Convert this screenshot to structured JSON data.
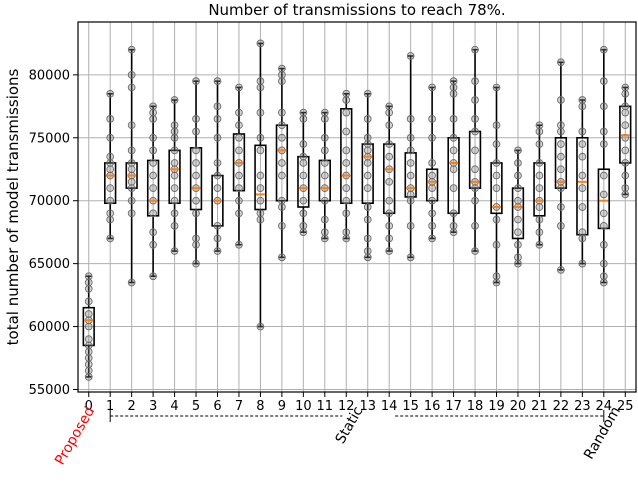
{
  "chart_data": {
    "type": "box",
    "title": "Number of transmissions to reach 78%.",
    "xlabel": "",
    "ylabel": "total number of model transmissions",
    "categories": [
      "0",
      "1",
      "2",
      "3",
      "4",
      "5",
      "6",
      "7",
      "8",
      "9",
      "10",
      "11",
      "12",
      "13",
      "14",
      "15",
      "16",
      "17",
      "18",
      "19",
      "20",
      "21",
      "22",
      "23",
      "24",
      "25"
    ],
    "ylim": [
      54800,
      84200
    ],
    "yticks": [
      55000,
      60000,
      65000,
      70000,
      75000,
      80000
    ],
    "ytick_labels": [
      "55000",
      "60000",
      "65000",
      "70000",
      "75000",
      "80000"
    ],
    "grid": true,
    "group_labels": [
      {
        "text": "Proposed",
        "at": 0,
        "color": "#ff0000"
      },
      {
        "text": "Static",
        "at": 12.5,
        "color": "#000000"
      },
      {
        "text": "Random",
        "at": 24.5,
        "color": "#000000"
      }
    ],
    "static_bracket": [
      1,
      24
    ],
    "median_color": "#ff7f0e",
    "boxes": [
      {
        "min": 56000,
        "q1": 58500,
        "median": 60500,
        "q3": 61500,
        "max": 64000,
        "points": [
          56000,
          56500,
          57000,
          57500,
          58000,
          58500,
          59000,
          60000,
          60500,
          61000,
          62000,
          63000,
          63500,
          64000
        ]
      },
      {
        "min": 67000,
        "q1": 69800,
        "median": 72000,
        "q3": 73000,
        "max": 78500,
        "points": [
          67000,
          68500,
          69000,
          70000,
          71000,
          72000,
          72500,
          73000,
          73500,
          75000,
          76500,
          78500
        ]
      },
      {
        "min": 63500,
        "q1": 71000,
        "median": 72000,
        "q3": 73000,
        "max": 82000,
        "points": [
          63500,
          69000,
          70000,
          71000,
          71500,
          72000,
          72500,
          73000,
          74000,
          76000,
          79000,
          80000,
          82000
        ]
      },
      {
        "min": 64000,
        "q1": 68800,
        "median": 70000,
        "q3": 73200,
        "max": 77500,
        "points": [
          64000,
          66500,
          67500,
          69000,
          70000,
          71000,
          72000,
          73000,
          74000,
          75000,
          76500,
          77000,
          77500
        ]
      },
      {
        "min": 66000,
        "q1": 69800,
        "median": 72500,
        "q3": 74000,
        "max": 78000,
        "points": [
          66000,
          68000,
          69000,
          70000,
          71000,
          72000,
          72500,
          73000,
          74000,
          75000,
          75500,
          76000,
          78000
        ]
      },
      {
        "min": 65000,
        "q1": 69300,
        "median": 71000,
        "q3": 74200,
        "max": 79500,
        "points": [
          65000,
          66500,
          67000,
          69000,
          70000,
          71000,
          72000,
          73000,
          74000,
          75500,
          76500,
          79500
        ]
      },
      {
        "min": 66000,
        "q1": 68000,
        "median": 70000,
        "q3": 72000,
        "max": 79500,
        "points": [
          66000,
          67000,
          68000,
          70000,
          71000,
          72000,
          73000,
          75000,
          76500,
          77500,
          79500
        ]
      },
      {
        "min": 66500,
        "q1": 70800,
        "median": 73000,
        "q3": 75300,
        "max": 79000,
        "points": [
          66500,
          69000,
          70000,
          71000,
          72000,
          73000,
          74000,
          75000,
          76000,
          77000,
          79000
        ]
      },
      {
        "min": 60000,
        "q1": 69300,
        "median": 70500,
        "q3": 74400,
        "max": 82500,
        "points": [
          60000,
          68500,
          69000,
          70000,
          71000,
          72000,
          74000,
          75000,
          77000,
          79000,
          79500,
          82500
        ]
      },
      {
        "min": 65500,
        "q1": 70000,
        "median": 74000,
        "q3": 76000,
        "max": 80500,
        "points": [
          65500,
          68000,
          69500,
          70000,
          72000,
          73000,
          74000,
          75000,
          76000,
          77000,
          79500,
          80000,
          80500
        ]
      },
      {
        "min": 67500,
        "q1": 69500,
        "median": 71000,
        "q3": 73500,
        "max": 77000,
        "points": [
          67500,
          68000,
          69000,
          70000,
          71000,
          72000,
          73000,
          73500,
          74500,
          76500,
          77000
        ]
      },
      {
        "min": 67000,
        "q1": 70000,
        "median": 71000,
        "q3": 73200,
        "max": 77000,
        "points": [
          67000,
          67500,
          68500,
          70000,
          71000,
          72000,
          73000,
          74000,
          75000,
          76500,
          77000
        ]
      },
      {
        "min": 67000,
        "q1": 69800,
        "median": 72000,
        "q3": 77300,
        "max": 78500,
        "points": [
          67000,
          67500,
          69000,
          70000,
          71000,
          72000,
          73000,
          74000,
          75500,
          77000,
          78000,
          78500
        ]
      },
      {
        "min": 65500,
        "q1": 69800,
        "median": 73500,
        "q3": 74500,
        "max": 78500,
        "points": [
          65500,
          66000,
          67000,
          68500,
          69500,
          71000,
          72000,
          73000,
          73500,
          74000,
          74500,
          75000,
          76500,
          78500
        ]
      },
      {
        "min": 66000,
        "q1": 69000,
        "median": 72500,
        "q3": 74500,
        "max": 77500,
        "points": [
          66000,
          67000,
          68000,
          69000,
          70000,
          71500,
          72500,
          73500,
          74500,
          76000,
          77000,
          77500
        ]
      },
      {
        "min": 65500,
        "q1": 70300,
        "median": 71000,
        "q3": 73800,
        "max": 81500,
        "points": [
          65500,
          68000,
          70000,
          70500,
          71000,
          72000,
          73000,
          74000,
          75000,
          76500,
          81500
        ]
      },
      {
        "min": 67000,
        "q1": 70000,
        "median": 71500,
        "q3": 72500,
        "max": 79000,
        "points": [
          67000,
          68000,
          69000,
          70000,
          71000,
          71500,
          72000,
          73000,
          75000,
          76500,
          79000
        ]
      },
      {
        "min": 67500,
        "q1": 69000,
        "median": 73000,
        "q3": 75000,
        "max": 79500,
        "points": [
          67500,
          68000,
          69000,
          71000,
          72500,
          73000,
          74000,
          75000,
          76500,
          78500,
          79000,
          79500
        ]
      },
      {
        "min": 66000,
        "q1": 71000,
        "median": 71500,
        "q3": 75500,
        "max": 82000,
        "points": [
          66000,
          68000,
          70000,
          71000,
          71500,
          72500,
          74000,
          75500,
          76500,
          78000,
          79500,
          82000
        ]
      },
      {
        "min": 63500,
        "q1": 69000,
        "median": 69500,
        "q3": 73000,
        "max": 79000,
        "points": [
          63500,
          64000,
          66500,
          68500,
          69500,
          71000,
          72000,
          73000,
          74500,
          76000,
          79000
        ]
      },
      {
        "min": 65000,
        "q1": 67000,
        "median": 69500,
        "q3": 71000,
        "max": 74000,
        "points": [
          65000,
          65500,
          66500,
          67500,
          68500,
          69500,
          70000,
          71000,
          72000,
          73000,
          74000
        ]
      },
      {
        "min": 66500,
        "q1": 68800,
        "median": 70000,
        "q3": 73000,
        "max": 76000,
        "points": [
          66500,
          67500,
          68500,
          69500,
          70000,
          71000,
          72000,
          73000,
          74500,
          75500,
          76000
        ]
      },
      {
        "min": 64500,
        "q1": 71000,
        "median": 71500,
        "q3": 75000,
        "max": 81000,
        "points": [
          64500,
          68000,
          69500,
          71000,
          71500,
          72500,
          73500,
          74500,
          75500,
          76000,
          78000,
          81000
        ]
      },
      {
        "min": 65000,
        "q1": 67300,
        "median": 71500,
        "q3": 75000,
        "max": 78000,
        "points": [
          65000,
          67000,
          67500,
          69500,
          71000,
          72000,
          73500,
          74500,
          75500,
          77500,
          78000
        ]
      },
      {
        "min": 63500,
        "q1": 67800,
        "median": 70000,
        "q3": 72500,
        "max": 82000,
        "points": [
          63500,
          64000,
          65000,
          66500,
          68000,
          69000,
          70500,
          72000,
          74500,
          75500,
          77500,
          79500,
          82000
        ]
      },
      {
        "min": 70500,
        "q1": 73000,
        "median": 75200,
        "q3": 77500,
        "max": 79000,
        "points": [
          70500,
          71000,
          72000,
          73000,
          74000,
          75000,
          76000,
          77000,
          77500,
          78500,
          79000
        ]
      }
    ]
  }
}
